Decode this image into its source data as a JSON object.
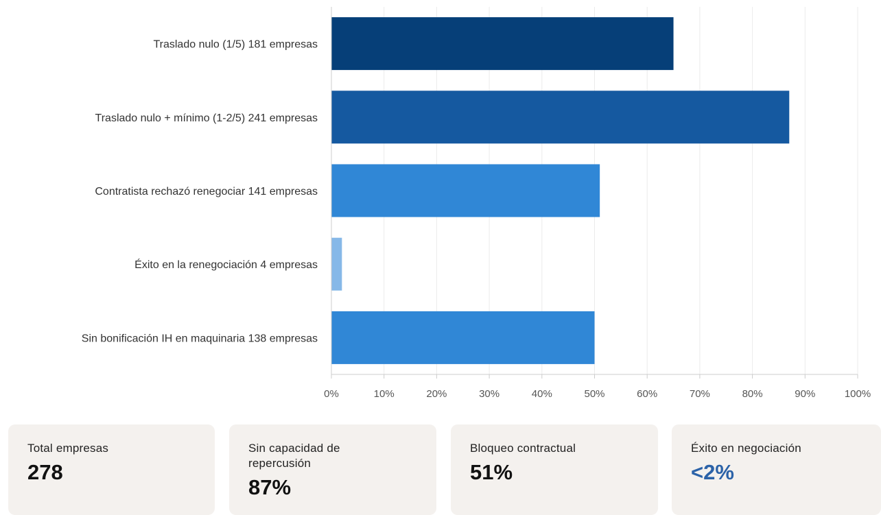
{
  "chart_data": {
    "type": "bar",
    "orientation": "horizontal",
    "categories": [
      "Traslado nulo (1/5) 181 empresas",
      "Traslado nulo + mínimo (1-2/5) 241 empresas",
      "Contratista rechazó renegociar 141 empresas",
      "Éxito en la renegociación 4 empresas",
      "Sin bonificación IH en maquinaria 138 empresas"
    ],
    "values": [
      65,
      87,
      51,
      2,
      50
    ],
    "colors": [
      "#063f78",
      "#1559a0",
      "#3087d6",
      "#86b8e8",
      "#3087d6"
    ],
    "xlim": [
      0,
      100
    ],
    "xticks": [
      "0%",
      "10%",
      "20%",
      "30%",
      "40%",
      "50%",
      "60%",
      "70%",
      "80%",
      "90%",
      "100%"
    ],
    "grid": true,
    "title": "",
    "xlabel": "",
    "ylabel": ""
  },
  "cards": [
    {
      "label": "Total empresas",
      "value": "278"
    },
    {
      "label": "Sin capacidad de repercusión",
      "value": "87%"
    },
    {
      "label": "Bloqueo contractual",
      "value": "51%"
    },
    {
      "label": "Éxito en negociación",
      "value": "<2%",
      "accent_color": "#2b62a8"
    }
  ]
}
